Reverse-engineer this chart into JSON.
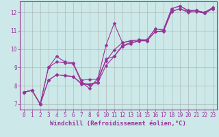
{
  "series": [
    {
      "x": [
        0,
        1,
        2,
        3,
        4,
        5,
        6,
        7,
        8,
        9,
        10,
        11,
        12,
        13,
        14,
        15,
        16,
        17,
        18,
        19,
        20,
        21,
        22,
        23
      ],
      "y": [
        7.65,
        7.75,
        7.0,
        9.0,
        9.6,
        9.3,
        9.25,
        8.3,
        8.35,
        8.35,
        10.2,
        11.4,
        10.35,
        10.45,
        10.5,
        10.5,
        11.1,
        11.05,
        12.2,
        12.35,
        12.1,
        12.1,
        12.0,
        12.25
      ]
    },
    {
      "x": [
        0,
        1,
        2,
        3,
        4,
        5,
        6,
        7,
        8,
        9,
        10,
        11,
        12,
        13,
        14,
        15,
        16,
        17,
        18,
        19,
        20,
        21,
        22,
        23
      ],
      "y": [
        7.65,
        7.75,
        7.0,
        9.0,
        9.3,
        9.25,
        9.2,
        8.2,
        7.85,
        8.4,
        9.35,
        9.95,
        10.35,
        10.45,
        10.5,
        10.5,
        11.1,
        11.05,
        12.2,
        12.35,
        12.1,
        12.1,
        12.0,
        12.25
      ]
    },
    {
      "x": [
        0,
        1,
        2,
        3,
        4,
        5,
        6,
        7,
        8,
        9,
        10,
        11,
        12,
        13,
        14,
        15,
        16,
        17,
        18,
        19,
        20,
        21,
        22,
        23
      ],
      "y": [
        7.65,
        7.75,
        7.0,
        8.3,
        8.6,
        8.55,
        8.5,
        8.1,
        8.05,
        8.15,
        9.1,
        9.6,
        10.15,
        10.3,
        10.45,
        10.45,
        10.95,
        10.95,
        12.05,
        12.2,
        12.0,
        12.05,
        11.95,
        12.2
      ]
    },
    {
      "x": [
        0,
        1,
        2,
        3,
        4,
        5,
        6,
        7,
        8,
        9,
        10,
        11,
        12,
        13,
        14,
        15,
        16,
        17,
        18,
        19,
        20,
        21,
        22,
        23
      ],
      "y": [
        7.65,
        7.75,
        7.0,
        8.3,
        8.6,
        8.55,
        8.5,
        8.15,
        8.1,
        8.2,
        9.45,
        9.6,
        10.2,
        10.35,
        10.45,
        10.45,
        10.95,
        11.0,
        12.05,
        12.2,
        12.05,
        12.1,
        11.95,
        12.2
      ]
    }
  ],
  "xlim": [
    -0.5,
    23.5
  ],
  "ylim": [
    6.7,
    12.6
  ],
  "yticks": [
    7,
    8,
    9,
    10,
    11,
    12
  ],
  "xticks": [
    0,
    1,
    2,
    3,
    4,
    5,
    6,
    7,
    8,
    9,
    10,
    11,
    12,
    13,
    14,
    15,
    16,
    17,
    18,
    19,
    20,
    21,
    22,
    23
  ],
  "xlabel": "Windchill (Refroidissement éolien,°C)",
  "bg_color": "#cce8e8",
  "line_color": "#993399",
  "grid_color": "#999999",
  "marker": "D",
  "marker_size": 2.5,
  "line_width": 0.8,
  "xlabel_fontsize": 6.5,
  "tick_fontsize": 5.5
}
